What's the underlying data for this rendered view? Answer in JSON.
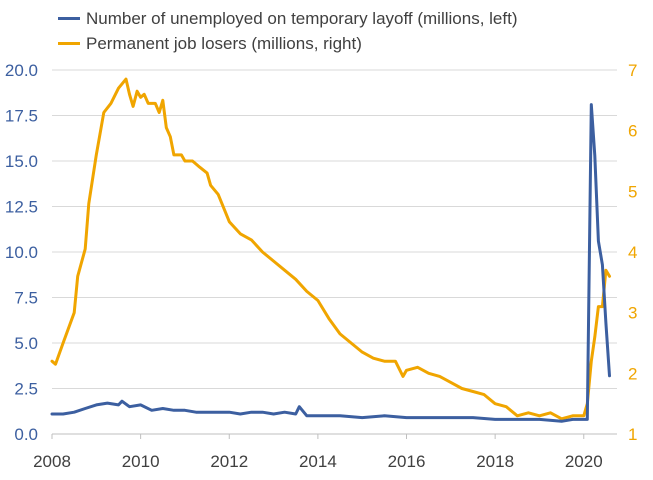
{
  "chart_data": {
    "type": "line",
    "title": "",
    "xlabel": "",
    "ylabel_left": "",
    "ylabel_right": "",
    "legend_position": "top-left",
    "grid": true,
    "x_ticks": [
      "2008",
      "2010",
      "2012",
      "2014",
      "2016",
      "2018",
      "2020"
    ],
    "y_left_ticks": [
      "0.0",
      "2.5",
      "5.0",
      "7.5",
      "10.0",
      "12.5",
      "15.0",
      "17.5",
      "20.0"
    ],
    "y_right_ticks": [
      "1",
      "2",
      "3",
      "4",
      "5",
      "6",
      "7"
    ],
    "xlim": [
      2008,
      2020.75
    ],
    "ylim_left": [
      0,
      20
    ],
    "ylim_right": [
      1,
      7
    ],
    "colors": {
      "temporary": "#3c5fa0",
      "permanent": "#f0a500",
      "left_axis_text": "#3c5fa0",
      "right_axis_text": "#f0a500"
    },
    "series": [
      {
        "name": "Number of unemployed on temporary layoff (millions, left)",
        "axis": "left",
        "x": [
          2008.0,
          2008.25,
          2008.5,
          2008.75,
          2009.0,
          2009.25,
          2009.5,
          2009.58,
          2009.75,
          2010.0,
          2010.25,
          2010.5,
          2010.75,
          2011.0,
          2011.25,
          2011.5,
          2011.75,
          2012.0,
          2012.25,
          2012.5,
          2012.75,
          2013.0,
          2013.25,
          2013.5,
          2013.58,
          2013.75,
          2014.0,
          2014.5,
          2015.0,
          2015.5,
          2016.0,
          2016.5,
          2017.0,
          2017.5,
          2018.0,
          2018.5,
          2019.0,
          2019.5,
          2019.75,
          2019.92,
          2020.0,
          2020.08,
          2020.17,
          2020.25,
          2020.33,
          2020.42,
          2020.5,
          2020.58
        ],
        "values": [
          1.1,
          1.1,
          1.2,
          1.4,
          1.6,
          1.7,
          1.6,
          1.8,
          1.5,
          1.6,
          1.3,
          1.4,
          1.3,
          1.3,
          1.2,
          1.2,
          1.2,
          1.2,
          1.1,
          1.2,
          1.2,
          1.1,
          1.2,
          1.1,
          1.5,
          1.0,
          1.0,
          1.0,
          0.9,
          1.0,
          0.9,
          0.9,
          0.9,
          0.9,
          0.8,
          0.8,
          0.8,
          0.7,
          0.8,
          0.8,
          0.8,
          0.8,
          18.1,
          15.3,
          10.6,
          9.3,
          6.1,
          3.2
        ]
      },
      {
        "name": "Permanent job losers (millions, right)",
        "axis": "right",
        "x": [
          2008.0,
          2008.08,
          2008.25,
          2008.5,
          2008.58,
          2008.75,
          2008.83,
          2009.0,
          2009.17,
          2009.33,
          2009.5,
          2009.67,
          2009.75,
          2009.83,
          2009.92,
          2010.0,
          2010.08,
          2010.17,
          2010.33,
          2010.42,
          2010.5,
          2010.58,
          2010.67,
          2010.75,
          2010.92,
          2011.0,
          2011.17,
          2011.25,
          2011.33,
          2011.5,
          2011.58,
          2011.75,
          2012.0,
          2012.25,
          2012.5,
          2012.75,
          2013.0,
          2013.25,
          2013.5,
          2013.75,
          2014.0,
          2014.25,
          2014.5,
          2014.75,
          2015.0,
          2015.25,
          2015.5,
          2015.75,
          2015.92,
          2016.0,
          2016.25,
          2016.5,
          2016.75,
          2017.0,
          2017.25,
          2017.5,
          2017.75,
          2018.0,
          2018.25,
          2018.5,
          2018.75,
          2019.0,
          2019.25,
          2019.5,
          2019.75,
          2019.92,
          2020.0,
          2020.08,
          2020.17,
          2020.25,
          2020.33,
          2020.42,
          2020.5,
          2020.58
        ],
        "values": [
          2.2,
          2.15,
          2.5,
          3.0,
          3.6,
          4.05,
          4.8,
          5.6,
          6.3,
          6.45,
          6.7,
          6.85,
          6.6,
          6.4,
          6.65,
          6.55,
          6.6,
          6.45,
          6.45,
          6.3,
          6.5,
          6.05,
          5.9,
          5.6,
          5.6,
          5.5,
          5.5,
          5.45,
          5.4,
          5.3,
          5.1,
          4.95,
          4.5,
          4.3,
          4.2,
          4.0,
          3.85,
          3.7,
          3.55,
          3.35,
          3.2,
          2.9,
          2.65,
          2.5,
          2.35,
          2.25,
          2.2,
          2.2,
          1.95,
          2.05,
          2.1,
          2.0,
          1.95,
          1.85,
          1.75,
          1.7,
          1.65,
          1.5,
          1.45,
          1.3,
          1.35,
          1.3,
          1.35,
          1.25,
          1.3,
          1.3,
          1.3,
          1.5,
          2.2,
          2.6,
          3.1,
          3.1,
          3.7,
          3.6
        ]
      }
    ]
  }
}
